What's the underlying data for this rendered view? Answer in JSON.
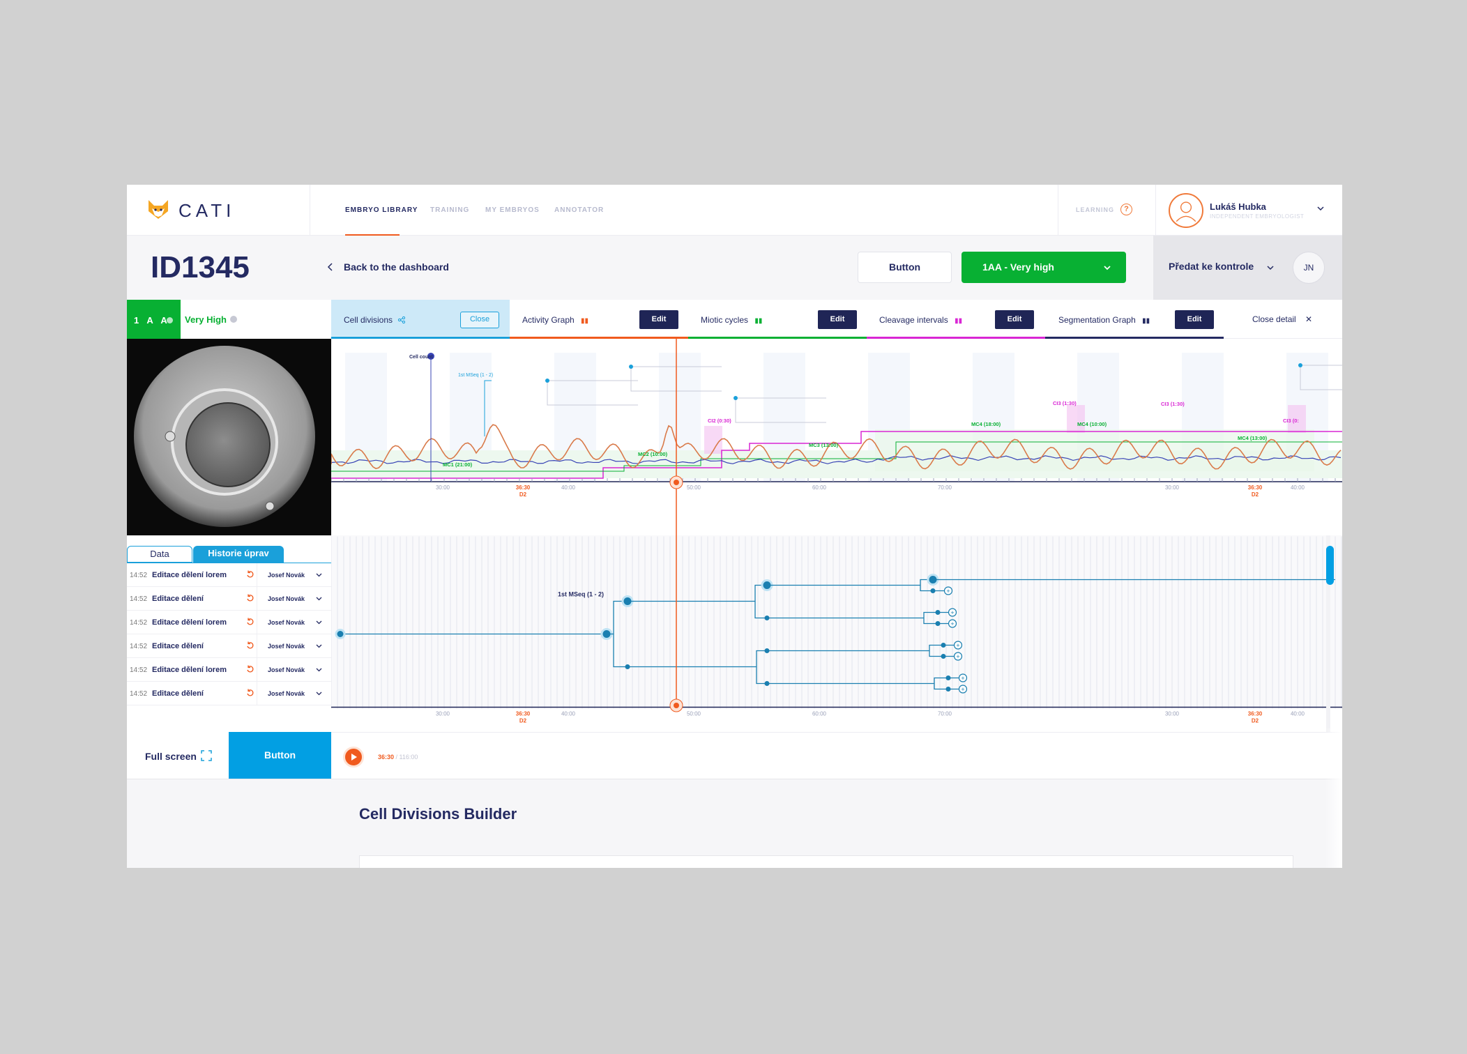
{
  "app": {
    "name": "CATI"
  },
  "nav": {
    "items": [
      {
        "label": "EMBRYO LIBRARY"
      },
      {
        "label": "TRAINING"
      },
      {
        "label": "MY EMBRYOS"
      },
      {
        "label": "ANNOTATOR"
      }
    ],
    "active": "EMBRYO LIBRARY"
  },
  "learning": {
    "label": "LEARNING",
    "help": "?"
  },
  "user": {
    "name": "Lukáš Hubka",
    "role": "INDEPENDENT EMBRYOLOGIST"
  },
  "subheader": {
    "page_id": "ID1345",
    "back_label": "Back to the dashboard",
    "button_label": "Button",
    "grade_select": "1AA - Very high",
    "predat_label": "Předat ke kontrole",
    "avatar_initials": "JN"
  },
  "embryo": {
    "grade_code": "1 A A",
    "grade_label": "Very High"
  },
  "tabs": [
    {
      "label": "Cell divisions",
      "action": "Close",
      "color": "#1aa0da"
    },
    {
      "label": "Activity Graph",
      "action": "Edit",
      "color": "#f05a1e"
    },
    {
      "label": "Miotic cycles",
      "action": "Edit",
      "color": "#08b033"
    },
    {
      "label": "Cleavage intervals",
      "action": "Edit",
      "color": "#d926d4"
    },
    {
      "label": "Segmentation Graph",
      "action": "Edit",
      "color": "#242a62"
    }
  ],
  "close_detail": "Close detail",
  "graph": {
    "cell_count_label": "Cell count",
    "mseq_label": "1st MSeq (1 - 2)",
    "annotations": [
      {
        "label": "CI2 (0:30)",
        "color": "#d926d4"
      },
      {
        "label": "CI3 (1:30)",
        "color": "#d926d4"
      },
      {
        "label": "CI3 (1:30)",
        "color": "#d926d4"
      },
      {
        "label": "CI3 (0:",
        "color": "#d926d4"
      },
      {
        "label": "MC1 (21:00)",
        "color": "#08b033"
      },
      {
        "label": "MC2 (10:00)",
        "color": "#08b033"
      },
      {
        "label": "MC3 (13:00)",
        "color": "#08b033"
      },
      {
        "label": "MC4 (18:00)",
        "color": "#08b033"
      },
      {
        "label": "MC4 (10:00)",
        "color": "#08b033"
      },
      {
        "label": "MC4 (13:00)",
        "color": "#08b033"
      }
    ],
    "axis_ticks": [
      "30:00",
      "40:00",
      "50:00",
      "60:00",
      "70:00",
      "30:00",
      "40:00"
    ],
    "marker_ticks": [
      {
        "label": "36:30",
        "day": "D2"
      },
      {
        "label": "36:30",
        "day": "D2"
      }
    ]
  },
  "tree": {
    "mseq_label": "1st MSeq (1 - 2)"
  },
  "history": {
    "tabs": {
      "data": "Data",
      "history": "Historie úprav"
    },
    "rows": [
      {
        "time": "14:52",
        "action": "Editace dělení lorem",
        "user": "Josef Novák"
      },
      {
        "time": "14:52",
        "action": "Editace dělení",
        "user": "Josef Novák"
      },
      {
        "time": "14:52",
        "action": "Editace dělení lorem",
        "user": "Josef Novák"
      },
      {
        "time": "14:52",
        "action": "Editace dělení",
        "user": "Josef Novák"
      },
      {
        "time": "14:52",
        "action": "Editace dělení lorem",
        "user": "Josef Novák"
      },
      {
        "time": "14:52",
        "action": "Editace dělení",
        "user": "Josef Novák"
      }
    ]
  },
  "footer": {
    "fullscreen": "Full screen",
    "button_label": "Button"
  },
  "player": {
    "current": "36:30",
    "total": "/ 116:00"
  },
  "builder": {
    "title": "Cell Divisions Builder"
  },
  "colors": {
    "navy": "#242a62",
    "green": "#08b033",
    "orange": "#f05a1e",
    "blue": "#029fe3",
    "magenta": "#d926d4"
  }
}
